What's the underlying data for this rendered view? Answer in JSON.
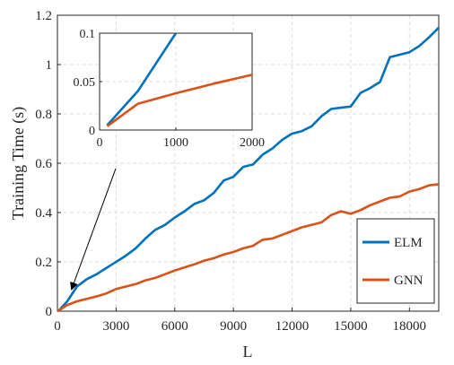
{
  "chart_data": {
    "type": "line",
    "xlabel": "L",
    "ylabel": "Training Time (s)",
    "xlim": [
      0,
      19500
    ],
    "ylim": [
      0,
      1.2
    ],
    "xticks": [
      0,
      3000,
      6000,
      9000,
      12000,
      15000,
      18000
    ],
    "xtick_labels": [
      "0",
      "3000",
      "6000",
      "9000",
      "12000",
      "15000",
      "18000"
    ],
    "yticks": [
      0,
      0.2,
      0.4,
      0.6,
      0.8,
      1.0,
      1.2
    ],
    "ytick_labels": [
      "0",
      "0.2",
      "0.4",
      "0.6",
      "0.8",
      "1",
      "1.2"
    ],
    "grid": true,
    "legend_position": "bottom-right",
    "series": [
      {
        "name": "ELM",
        "color": "#0072BD",
        "x": [
          0,
          100,
          500,
          1000,
          1500,
          2000,
          2500,
          3000,
          3500,
          4000,
          4500,
          5000,
          5500,
          6000,
          6500,
          7000,
          7500,
          8000,
          8500,
          9000,
          9500,
          10000,
          10500,
          11000,
          11500,
          12000,
          12500,
          13000,
          13500,
          14000,
          14500,
          15000,
          15500,
          16000,
          16500,
          17000,
          17500,
          18000,
          18500,
          19000,
          19500
        ],
        "y": [
          0,
          0.005,
          0.04,
          0.1,
          0.13,
          0.15,
          0.175,
          0.2,
          0.225,
          0.255,
          0.295,
          0.33,
          0.35,
          0.38,
          0.405,
          0.435,
          0.45,
          0.48,
          0.53,
          0.545,
          0.585,
          0.595,
          0.635,
          0.66,
          0.695,
          0.72,
          0.73,
          0.75,
          0.79,
          0.82,
          0.825,
          0.83,
          0.885,
          0.905,
          0.93,
          1.03,
          1.04,
          1.05,
          1.075,
          1.11,
          1.15
        ]
      },
      {
        "name": "GNN",
        "color": "#D95319",
        "x": [
          0,
          100,
          500,
          1000,
          1500,
          2000,
          2500,
          3000,
          3500,
          4000,
          4500,
          5000,
          5500,
          6000,
          6500,
          7000,
          7500,
          8000,
          8500,
          9000,
          9500,
          10000,
          10500,
          11000,
          11500,
          12000,
          12500,
          13000,
          13500,
          14000,
          14500,
          15000,
          15500,
          16000,
          16500,
          17000,
          17500,
          18000,
          18500,
          19000,
          19500
        ],
        "y": [
          0,
          0.004,
          0.025,
          0.04,
          0.05,
          0.06,
          0.072,
          0.09,
          0.1,
          0.11,
          0.125,
          0.135,
          0.15,
          0.165,
          0.178,
          0.19,
          0.205,
          0.215,
          0.23,
          0.24,
          0.255,
          0.265,
          0.29,
          0.295,
          0.31,
          0.325,
          0.34,
          0.35,
          0.36,
          0.39,
          0.405,
          0.395,
          0.41,
          0.43,
          0.445,
          0.46,
          0.465,
          0.485,
          0.495,
          0.51,
          0.515
        ]
      }
    ],
    "inset": {
      "xlim": [
        0,
        2000
      ],
      "ylim": [
        0,
        0.1
      ],
      "xticks": [
        0,
        1000,
        2000
      ],
      "xtick_labels": [
        "0",
        "1000",
        "2000"
      ],
      "yticks": [
        0,
        0.05,
        0.1
      ],
      "ytick_labels": [
        "0",
        "0.05",
        "0.1"
      ],
      "series": [
        {
          "name": "ELM",
          "x": [
            100,
            500,
            1000
          ],
          "y": [
            0.005,
            0.04,
            0.1
          ]
        },
        {
          "name": "GNN",
          "x": [
            100,
            500,
            1000,
            1500,
            2000
          ],
          "y": [
            0.004,
            0.027,
            0.038,
            0.048,
            0.057
          ]
        }
      ]
    }
  }
}
